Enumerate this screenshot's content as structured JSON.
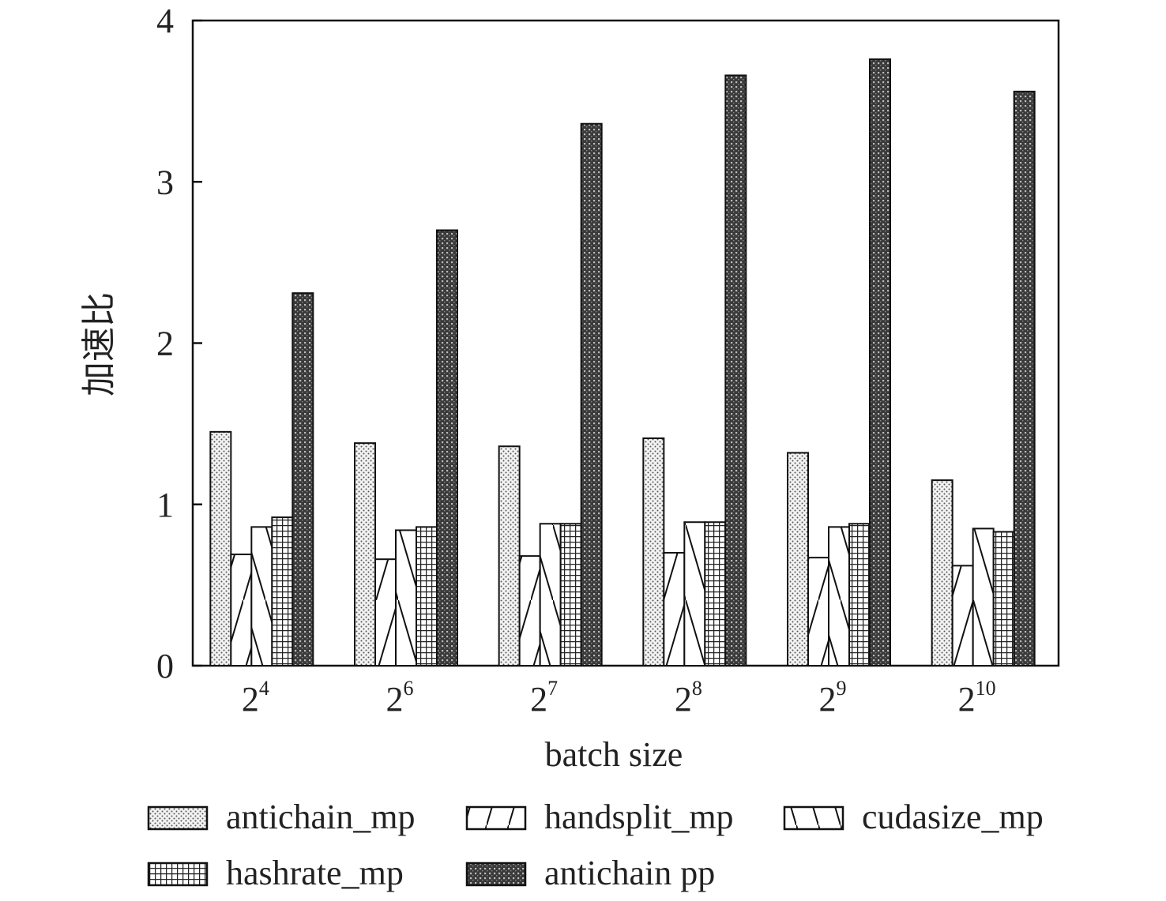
{
  "chart_data": {
    "type": "bar",
    "xlabel": "batch size",
    "ylabel": "加速比",
    "ylim": [
      0,
      4
    ],
    "yticks": [
      "0",
      "1",
      "2",
      "3",
      "4"
    ],
    "categories": [
      {
        "base": "2",
        "exp": "4"
      },
      {
        "base": "2",
        "exp": "6"
      },
      {
        "base": "2",
        "exp": "7"
      },
      {
        "base": "2",
        "exp": "8"
      },
      {
        "base": "2",
        "exp": "9"
      },
      {
        "base": "2",
        "exp": "10"
      }
    ],
    "series": [
      {
        "name": "antichain_mp",
        "pattern": "dots",
        "values": [
          1.45,
          1.38,
          1.36,
          1.41,
          1.32,
          1.15
        ]
      },
      {
        "name": "handsplit_mp",
        "pattern": "forward-slash",
        "values": [
          0.69,
          0.66,
          0.68,
          0.7,
          0.67,
          0.62
        ]
      },
      {
        "name": "cudasize_mp",
        "pattern": "back-slash",
        "values": [
          0.86,
          0.84,
          0.88,
          0.89,
          0.86,
          0.85
        ]
      },
      {
        "name": "hashrate_mp",
        "pattern": "grid",
        "values": [
          0.92,
          0.86,
          0.88,
          0.89,
          0.88,
          0.83
        ]
      },
      {
        "name": "antichain pp",
        "pattern": "dense-dark",
        "values": [
          2.31,
          2.7,
          3.36,
          3.66,
          3.76,
          3.56
        ]
      }
    ],
    "grid": false,
    "legend_position": "bottom"
  }
}
